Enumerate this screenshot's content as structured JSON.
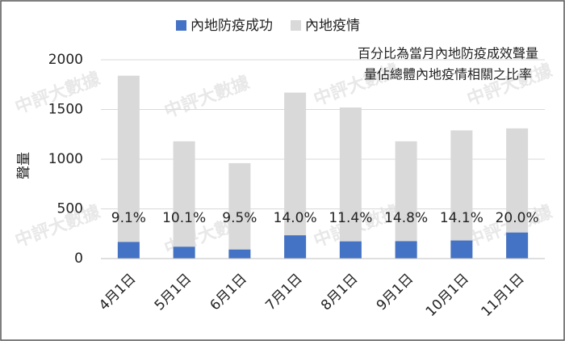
{
  "chart_data": {
    "type": "bar",
    "categories": [
      "4月1日",
      "5月1日",
      "6月1日",
      "7月1日",
      "8月1日",
      "9月1日",
      "10月1日",
      "11月1日"
    ],
    "series": [
      {
        "name": "內地防疫成功",
        "color": "#4472c4",
        "values": [
          167,
          119,
          91,
          234,
          173,
          175,
          182,
          262
        ]
      },
      {
        "name": "內地疫情",
        "color": "#d9d9d9",
        "values": [
          1840,
          1180,
          960,
          1670,
          1520,
          1180,
          1290,
          1310
        ]
      }
    ],
    "percent_labels": [
      "9.1%",
      "10.1%",
      "9.5%",
      "14.0%",
      "11.4%",
      "14.8%",
      "14.1%",
      "20.0%"
    ],
    "ylabel": "聲量",
    "annotation": [
      "百分比為當月內地防疫成效聲量",
      "量佔總體內地疫情相關之比率"
    ],
    "watermark": "中評大數據",
    "ylim": [
      0,
      2000
    ],
    "yticks": [
      0,
      500,
      1000,
      1500,
      2000
    ],
    "grid": true,
    "legend": "top"
  }
}
